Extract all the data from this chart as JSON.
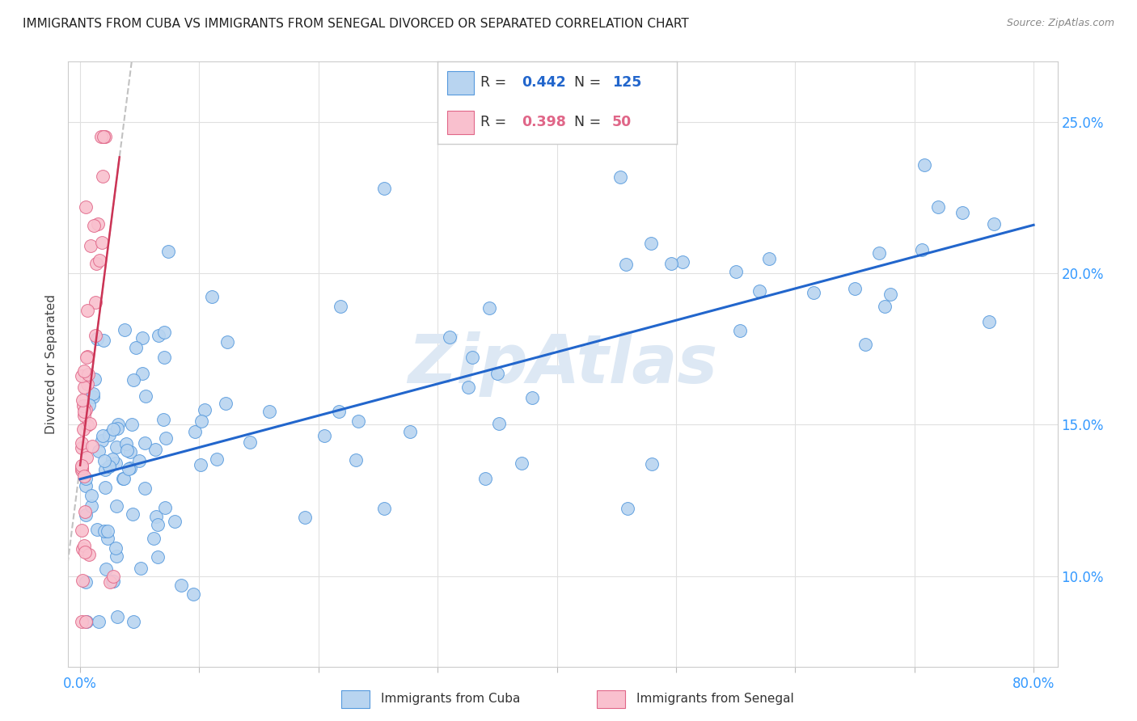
{
  "title": "IMMIGRANTS FROM CUBA VS IMMIGRANTS FROM SENEGAL DIVORCED OR SEPARATED CORRELATION CHART",
  "source": "Source: ZipAtlas.com",
  "ylabel": "Divorced or Separated",
  "xlim": [
    -0.01,
    0.82
  ],
  "ylim": [
    0.07,
    0.27
  ],
  "yticks": [
    0.1,
    0.15,
    0.2,
    0.25
  ],
  "ytick_labels": [
    "10.0%",
    "15.0%",
    "20.0%",
    "25.0%"
  ],
  "xticks": [
    0.0,
    0.1,
    0.2,
    0.3,
    0.4,
    0.5,
    0.6,
    0.7,
    0.8
  ],
  "cuba_R": 0.442,
  "cuba_N": 125,
  "senegal_R": 0.398,
  "senegal_N": 50,
  "cuba_color": "#b8d4f0",
  "cuba_edge_color": "#5599dd",
  "senegal_color": "#f9c0ce",
  "senegal_edge_color": "#e06688",
  "cuba_line_color": "#2266cc",
  "senegal_line_color": "#cc3355",
  "watermark": "ZipAtlas",
  "watermark_color": "#dde8f4",
  "background_color": "#ffffff",
  "grid_color": "#e0e0e0",
  "axis_label_color": "#3399ff",
  "title_color": "#222222",
  "source_color": "#888888"
}
